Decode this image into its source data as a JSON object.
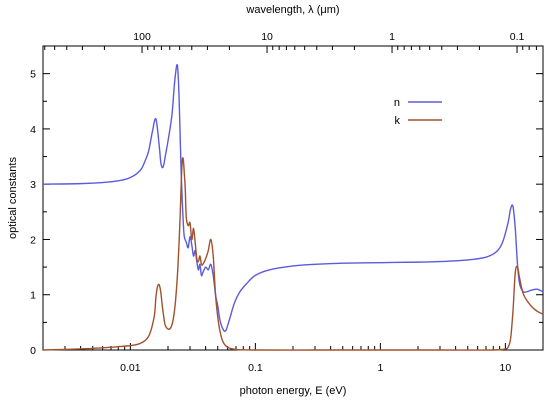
{
  "chart_data": {
    "type": "line",
    "title": "",
    "xlabel": "photon energy, E (eV)",
    "ylabel": "optical constants",
    "x2label": "wavelength, λ (μm)",
    "xscale": "log",
    "x2scale": "log",
    "xlim": [
      0.002,
      20
    ],
    "ylim": [
      0,
      5.5
    ],
    "xticks": [
      {
        "value": 0.01,
        "label": "0.01"
      },
      {
        "value": 0.1,
        "label": "0.1"
      },
      {
        "value": 1,
        "label": "1"
      },
      {
        "value": 10,
        "label": "10"
      }
    ],
    "yticks": [
      {
        "value": 0,
        "label": "0"
      },
      {
        "value": 1,
        "label": "1"
      },
      {
        "value": 2,
        "label": "2"
      },
      {
        "value": 3,
        "label": "3"
      },
      {
        "value": 4,
        "label": "4"
      },
      {
        "value": 5,
        "label": "5"
      }
    ],
    "x2ticks": [
      {
        "value": 100,
        "label": "100"
      },
      {
        "value": 10,
        "label": "10"
      },
      {
        "value": 1,
        "label": "1"
      },
      {
        "value": 0.1,
        "label": "0.1"
      }
    ],
    "legend_position": "top-right",
    "grid": false,
    "series": [
      {
        "name": "n",
        "color": "#5b5bdc",
        "x": [
          0.002,
          0.004,
          0.006,
          0.008,
          0.01,
          0.012,
          0.013,
          0.014,
          0.015,
          0.016,
          0.017,
          0.0175,
          0.018,
          0.0185,
          0.019,
          0.02,
          0.0215,
          0.0225,
          0.0235,
          0.024,
          0.0245,
          0.025,
          0.0255,
          0.026,
          0.0265,
          0.027,
          0.028,
          0.029,
          0.03,
          0.031,
          0.032,
          0.033,
          0.034,
          0.035,
          0.036,
          0.037,
          0.038,
          0.04,
          0.042,
          0.044,
          0.046,
          0.048,
          0.05,
          0.052,
          0.055,
          0.058,
          0.062,
          0.068,
          0.075,
          0.085,
          0.1,
          0.13,
          0.2,
          0.3,
          0.5,
          1,
          2,
          3,
          5,
          7,
          8.5,
          9.5,
          10.5,
          11.0,
          11.5,
          12.0,
          12.5,
          13.0,
          14,
          16,
          18,
          20
        ],
        "y": [
          3.0,
          3.01,
          3.03,
          3.06,
          3.12,
          3.25,
          3.4,
          3.6,
          3.95,
          4.18,
          3.7,
          3.4,
          3.3,
          3.35,
          3.5,
          3.78,
          4.25,
          4.8,
          5.15,
          5.05,
          4.6,
          3.9,
          3.2,
          2.7,
          2.3,
          2.05,
          1.95,
          1.85,
          2.05,
          1.9,
          1.7,
          1.8,
          1.6,
          1.45,
          1.55,
          1.35,
          1.4,
          1.5,
          1.45,
          1.55,
          1.35,
          1.0,
          0.8,
          0.55,
          0.38,
          0.35,
          0.55,
          0.85,
          1.05,
          1.2,
          1.35,
          1.45,
          1.52,
          1.55,
          1.57,
          1.58,
          1.59,
          1.6,
          1.63,
          1.68,
          1.78,
          1.95,
          2.3,
          2.55,
          2.6,
          2.2,
          1.55,
          1.2,
          1.05,
          1.08,
          1.1,
          1.05
        ]
      },
      {
        "name": "k",
        "color": "#a0522d",
        "x": [
          0.002,
          0.004,
          0.006,
          0.008,
          0.01,
          0.012,
          0.014,
          0.0155,
          0.016,
          0.0165,
          0.017,
          0.0175,
          0.018,
          0.0185,
          0.019,
          0.02,
          0.021,
          0.022,
          0.023,
          0.024,
          0.025,
          0.0255,
          0.026,
          0.0265,
          0.027,
          0.0275,
          0.028,
          0.029,
          0.03,
          0.031,
          0.032,
          0.033,
          0.034,
          0.035,
          0.036,
          0.037,
          0.038,
          0.04,
          0.042,
          0.044,
          0.046,
          0.048,
          0.05,
          0.052,
          0.055,
          0.06,
          0.07,
          0.1,
          0.3,
          1,
          3,
          8,
          10,
          10.5,
          11,
          11.5,
          12.0,
          12.5,
          13.0,
          14,
          16,
          18,
          20
        ],
        "y": [
          0.0,
          0.02,
          0.04,
          0.06,
          0.08,
          0.12,
          0.25,
          0.6,
          0.95,
          1.15,
          1.18,
          1.05,
          0.8,
          0.6,
          0.45,
          0.38,
          0.4,
          0.55,
          0.9,
          1.5,
          2.4,
          3.0,
          3.42,
          3.45,
          3.2,
          2.9,
          2.4,
          2.25,
          2.3,
          2.0,
          2.2,
          1.95,
          1.65,
          1.6,
          1.7,
          1.55,
          1.55,
          1.65,
          1.8,
          2.0,
          1.7,
          1.0,
          0.6,
          0.35,
          0.15,
          0.05,
          0.01,
          0.0,
          0.0,
          0.0,
          0.0,
          0.0,
          0.02,
          0.05,
          0.2,
          0.7,
          1.4,
          1.5,
          1.3,
          1.0,
          0.8,
          0.7,
          0.65
        ]
      }
    ]
  }
}
